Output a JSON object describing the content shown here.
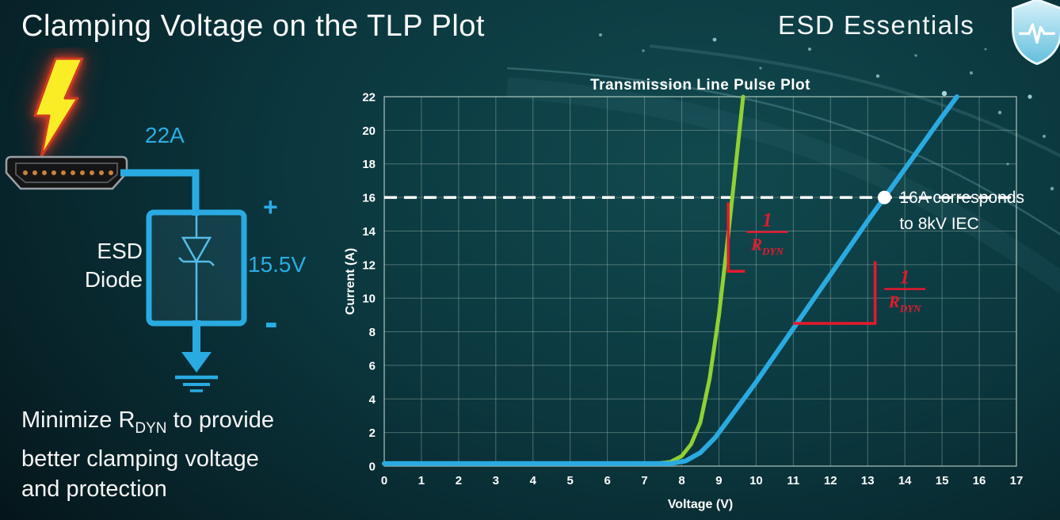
{
  "slide": {
    "title": "Clamping Voltage on the TLP Plot",
    "brand": "ESD Essentials",
    "note_line1_pre": "Minimize R",
    "note_line1_sub": "DYN",
    "note_line1_post": " to provide",
    "note_line2": "better clamping voltage",
    "note_line3": "and protection"
  },
  "diagram": {
    "surge_current_label": "22A",
    "device_label_line1": "ESD",
    "device_label_line2": "Diode",
    "plus_label": "+",
    "clamp_voltage_label": "15.5V",
    "minus_label": "-",
    "accent_color": "#2aade3"
  },
  "chart_data": {
    "type": "line",
    "title": "Transmission Line Pulse Plot",
    "xlabel": "Voltage (V)",
    "ylabel": "Current (A)",
    "xlim": [
      0,
      17
    ],
    "ylim": [
      0,
      22
    ],
    "xticks": [
      0,
      1,
      2,
      3,
      4,
      5,
      6,
      7,
      8,
      9,
      10,
      11,
      12,
      13,
      14,
      15,
      16,
      17
    ],
    "yticks": [
      0,
      2,
      4,
      6,
      8,
      10,
      12,
      14,
      16,
      18,
      20,
      22
    ],
    "grid": true,
    "legend": "none",
    "series": [
      {
        "id": "green-curve",
        "name": "green curve (steeper slope, lower RDYN)",
        "color": "#8fd133",
        "width": 5,
        "points": [
          [
            0,
            0.15
          ],
          [
            7.3,
            0.15
          ],
          [
            7.7,
            0.25
          ],
          [
            8.0,
            0.6
          ],
          [
            8.25,
            1.3
          ],
          [
            8.5,
            2.6
          ],
          [
            8.75,
            5.2
          ],
          [
            9.0,
            9.0
          ],
          [
            9.2,
            12.8
          ],
          [
            9.4,
            16.8
          ],
          [
            9.65,
            22
          ]
        ]
      },
      {
        "id": "blue-curve",
        "name": "blue curve (shallower slope, higher RDYN)",
        "color": "#29abe2",
        "width": 6,
        "points": [
          [
            0,
            0.15
          ],
          [
            7.7,
            0.15
          ],
          [
            8.1,
            0.3
          ],
          [
            8.5,
            0.8
          ],
          [
            8.9,
            1.7
          ],
          [
            9.3,
            2.9
          ],
          [
            10,
            5.0
          ],
          [
            11,
            8.2
          ],
          [
            12,
            11.4
          ],
          [
            13,
            14.6
          ],
          [
            13.45,
            16.0
          ],
          [
            14,
            17.7
          ],
          [
            15,
            20.8
          ],
          [
            15.4,
            22
          ]
        ]
      }
    ],
    "reference_line": {
      "y": 16,
      "color": "#ffffff",
      "dash": "16 9",
      "width": 3.5
    },
    "marker": {
      "x": 13.45,
      "y": 16,
      "radius": 8.5,
      "color": "#ffffff",
      "label_line1": "16A corresponds",
      "label_line2": "to 8kV IEC"
    },
    "slope_annotations": [
      {
        "color": "#e8192c",
        "path": [
          [
            9.25,
            15.7
          ],
          [
            9.25,
            11.6
          ],
          [
            9.7,
            11.6
          ]
        ],
        "fraction": {
          "x": 10.3,
          "y": 13.9,
          "numerator": "1",
          "denominator": "R",
          "denominator_sub": "DYN"
        }
      },
      {
        "color": "#e8192c",
        "path": [
          [
            11.0,
            8.5
          ],
          [
            13.2,
            8.5
          ],
          [
            13.2,
            12.2
          ]
        ],
        "fraction": {
          "x": 14.0,
          "y": 10.5,
          "numerator": "1",
          "denominator": "R",
          "denominator_sub": "DYN"
        }
      }
    ]
  }
}
